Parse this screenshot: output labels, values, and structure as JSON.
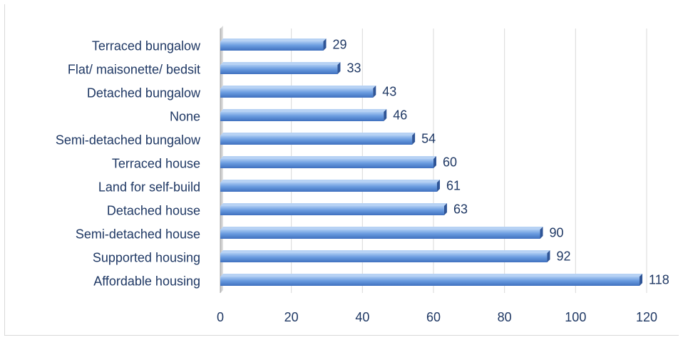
{
  "chart_data": {
    "type": "bar",
    "orientation": "horizontal",
    "categories": [
      "Terraced bungalow",
      "Flat/ maisonette/ bedsit",
      "Detached bungalow",
      "None",
      "Semi-detached bungalow",
      "Terraced house",
      "Land for self-build",
      "Detached house",
      "Semi-detached house",
      "Supported housing",
      "Affordable housing"
    ],
    "values": [
      29,
      33,
      43,
      46,
      54,
      60,
      61,
      63,
      90,
      92,
      118
    ],
    "title": "",
    "xlabel": "",
    "ylabel": "",
    "xlim": [
      0,
      120
    ],
    "xticks": [
      0,
      20,
      40,
      60,
      80,
      100,
      120
    ],
    "grid": true,
    "legend": "none",
    "data_labels": true,
    "colors": {
      "bar_fill": "#5b8fd9",
      "bar_light": "#9bc0ef",
      "bar_dark": "#3a6cb8",
      "gridline": "#d9d9d9",
      "text": "#1f3864"
    }
  }
}
